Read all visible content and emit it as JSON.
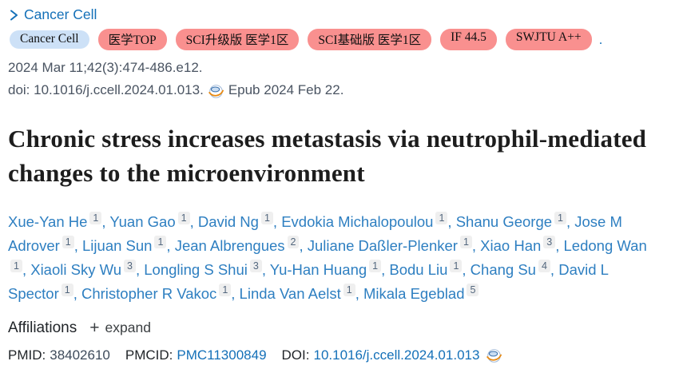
{
  "breadcrumb": {
    "journal_link": "Cancer Cell"
  },
  "badges": {
    "journal_badge": "Cancer Cell",
    "rank_badges": [
      "医学TOP",
      "SCI升级版 医学1区",
      "SCI基础版 医学1区",
      "IF 44.5",
      "SWJTU A++"
    ],
    "trailing_dot": ".",
    "journal_badge_bg": "#cde1f7",
    "rank_badge_bg": "#f9908f"
  },
  "citation": {
    "issue_line": "2024 Mar 11;42(3):474-486.e12.",
    "doi_text": "doi: 10.1016/j.ccell.2024.01.013.",
    "epub_text": "Epub 2024 Feb 22."
  },
  "title": "Chronic stress increases metastasis via neutrophil-mediated changes to the microenvironment",
  "authors": [
    {
      "name": "Xue-Yan He",
      "sup": "1"
    },
    {
      "name": "Yuan Gao",
      "sup": "1"
    },
    {
      "name": "David Ng",
      "sup": "1"
    },
    {
      "name": "Evdokia Michalopoulou",
      "sup": "1"
    },
    {
      "name": "Shanu George",
      "sup": "1"
    },
    {
      "name": "Jose M Adrover",
      "sup": "1"
    },
    {
      "name": "Lijuan Sun",
      "sup": "1"
    },
    {
      "name": "Jean Albrengues",
      "sup": "2"
    },
    {
      "name": "Juliane Daßler-Plenker",
      "sup": "1"
    },
    {
      "name": "Xiao Han",
      "sup": "3"
    },
    {
      "name": "Ledong Wan",
      "sup": "1"
    },
    {
      "name": "Xiaoli Sky Wu",
      "sup": "3"
    },
    {
      "name": "Longling S Shui",
      "sup": "3"
    },
    {
      "name": "Yu-Han Huang",
      "sup": "1"
    },
    {
      "name": "Bodu Liu",
      "sup": "1"
    },
    {
      "name": "Chang Su",
      "sup": "4"
    },
    {
      "name": "David L Spector",
      "sup": "1"
    },
    {
      "name": "Christopher R Vakoc",
      "sup": "1"
    },
    {
      "name": "Linda Van Aelst",
      "sup": "1"
    },
    {
      "name": "Mikala Egeblad",
      "sup": "5"
    }
  ],
  "affiliations": {
    "label": "Affiliations",
    "plus": "+",
    "expand_label": "expand"
  },
  "identifiers": {
    "pmid_label": "PMID:",
    "pmid_value": "38402610",
    "pmcid_label": "PMCID:",
    "pmcid_value": "PMC11300849",
    "doi_label": "DOI:",
    "doi_value": "10.1016/j.ccell.2024.01.013"
  },
  "colors": {
    "link_blue": "#1470b8",
    "author_link_blue": "#2e7fc1",
    "citation_gray": "#4a5462",
    "title_color": "#1d1d1d"
  }
}
